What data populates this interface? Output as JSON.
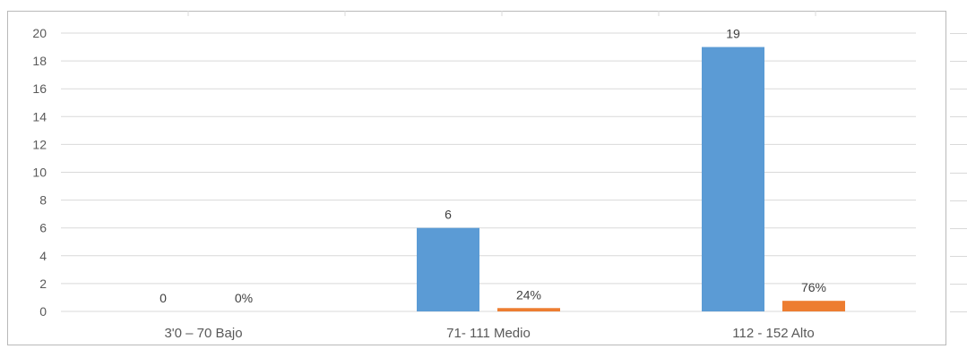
{
  "chart_data": {
    "type": "bar",
    "categories": [
      "3'0 – 70 Bajo",
      "71- 111 Medio",
      "112 - 152 Alto"
    ],
    "series": [
      {
        "values": [
          0,
          6,
          19
        ],
        "labels": [
          "0",
          "6",
          "19"
        ],
        "color": "#5b9bd5"
      },
      {
        "values": [
          0,
          0.24,
          0.76
        ],
        "labels": [
          "0%",
          "24%",
          "76%"
        ],
        "color": "#ed7d31"
      }
    ],
    "y_ticks": [
      "0",
      "2",
      "4",
      "6",
      "8",
      "10",
      "12",
      "14",
      "16",
      "18",
      "20"
    ],
    "ylim": [
      0,
      20
    ],
    "grid": true,
    "legend": "none"
  }
}
